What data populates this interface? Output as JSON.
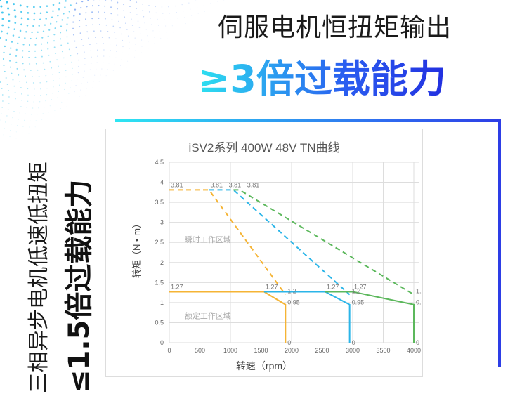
{
  "headline": {
    "line1": "伺服电机恒扭矩输出",
    "line2": "≥3倍过载能力"
  },
  "side": {
    "line1": "三相异步电机低速低扭矩",
    "line2": "≤1.5倍过载能力"
  },
  "colors": {
    "orange": "#f5b435",
    "blue": "#2bb5e8",
    "green": "#5cb85c",
    "accent": "#2a5cf0"
  },
  "chart_data": {
    "type": "line",
    "title": "iSV2系列  400W  48V  TN曲线",
    "xlabel": "转速（rpm）",
    "ylabel": "转矩（N • m）",
    "xlim": [
      0,
      4000
    ],
    "ylim": [
      0,
      4.5
    ],
    "xticks": [
      0,
      500,
      1000,
      1500,
      2000,
      2500,
      3000,
      3500,
      4000
    ],
    "yticks": [
      0,
      0.5,
      1,
      1.5,
      2,
      2.5,
      3,
      3.5,
      4,
      4.5
    ],
    "grid": true,
    "regions": [
      {
        "label": "瞬时工作区域",
        "x": 250,
        "y": 2.5
      },
      {
        "label": "额定工作区域",
        "x": 250,
        "y": 0.6
      }
    ],
    "series": [
      {
        "color": "orange",
        "style": "solid",
        "points": [
          [
            0,
            1.27
          ],
          [
            1550,
            1.27
          ],
          [
            1900,
            0.95
          ],
          [
            1900,
            0
          ]
        ]
      },
      {
        "color": "orange",
        "style": "dashed",
        "points": [
          [
            0,
            3.81
          ],
          [
            650,
            3.81
          ],
          [
            1900,
            1.2
          ]
        ]
      },
      {
        "color": "blue",
        "style": "solid",
        "points": [
          [
            1550,
            1.27
          ],
          [
            2550,
            1.27
          ],
          [
            2950,
            0.95
          ],
          [
            2950,
            0
          ]
        ]
      },
      {
        "color": "blue",
        "style": "dashed",
        "points": [
          [
            650,
            3.81
          ],
          [
            1050,
            3.81
          ],
          [
            2950,
            1.2
          ]
        ]
      },
      {
        "color": "green",
        "style": "solid",
        "points": [
          [
            2550,
            1.27
          ],
          [
            3000,
            1.27
          ],
          [
            4000,
            0.95
          ],
          [
            4000,
            0
          ]
        ]
      },
      {
        "color": "green",
        "style": "dashed",
        "points": [
          [
            1050,
            3.81
          ],
          [
            1150,
            3.81
          ],
          [
            4000,
            1.2
          ]
        ]
      }
    ],
    "data_labels": [
      {
        "text": "3.81",
        "x": 0,
        "y": 3.81
      },
      {
        "text": "3.81",
        "x": 650,
        "y": 3.81
      },
      {
        "text": "3.81",
        "x": 950,
        "y": 3.81
      },
      {
        "text": "3.81",
        "x": 1250,
        "y": 3.81
      },
      {
        "text": "1.27",
        "x": 0,
        "y": 1.27
      },
      {
        "text": "1.27",
        "x": 1550,
        "y": 1.27
      },
      {
        "text": "1.27",
        "x": 2550,
        "y": 1.27
      },
      {
        "text": "1.27",
        "x": 3000,
        "y": 1.27
      },
      {
        "text": "1.2",
        "x": 1900,
        "y": 1.2
      },
      {
        "text": "0.95",
        "x": 1900,
        "y": 0.95
      },
      {
        "text": "0",
        "x": 1900,
        "y": 0
      },
      {
        "text": "1.2",
        "x": 2950,
        "y": 1.2
      },
      {
        "text": "0.95",
        "x": 2950,
        "y": 0.95
      },
      {
        "text": "0",
        "x": 2950,
        "y": 0
      },
      {
        "text": "1.2",
        "x": 4000,
        "y": 1.2
      },
      {
        "text": "0.95",
        "x": 4000,
        "y": 0.95
      },
      {
        "text": "0",
        "x": 4000,
        "y": 0
      }
    ]
  }
}
